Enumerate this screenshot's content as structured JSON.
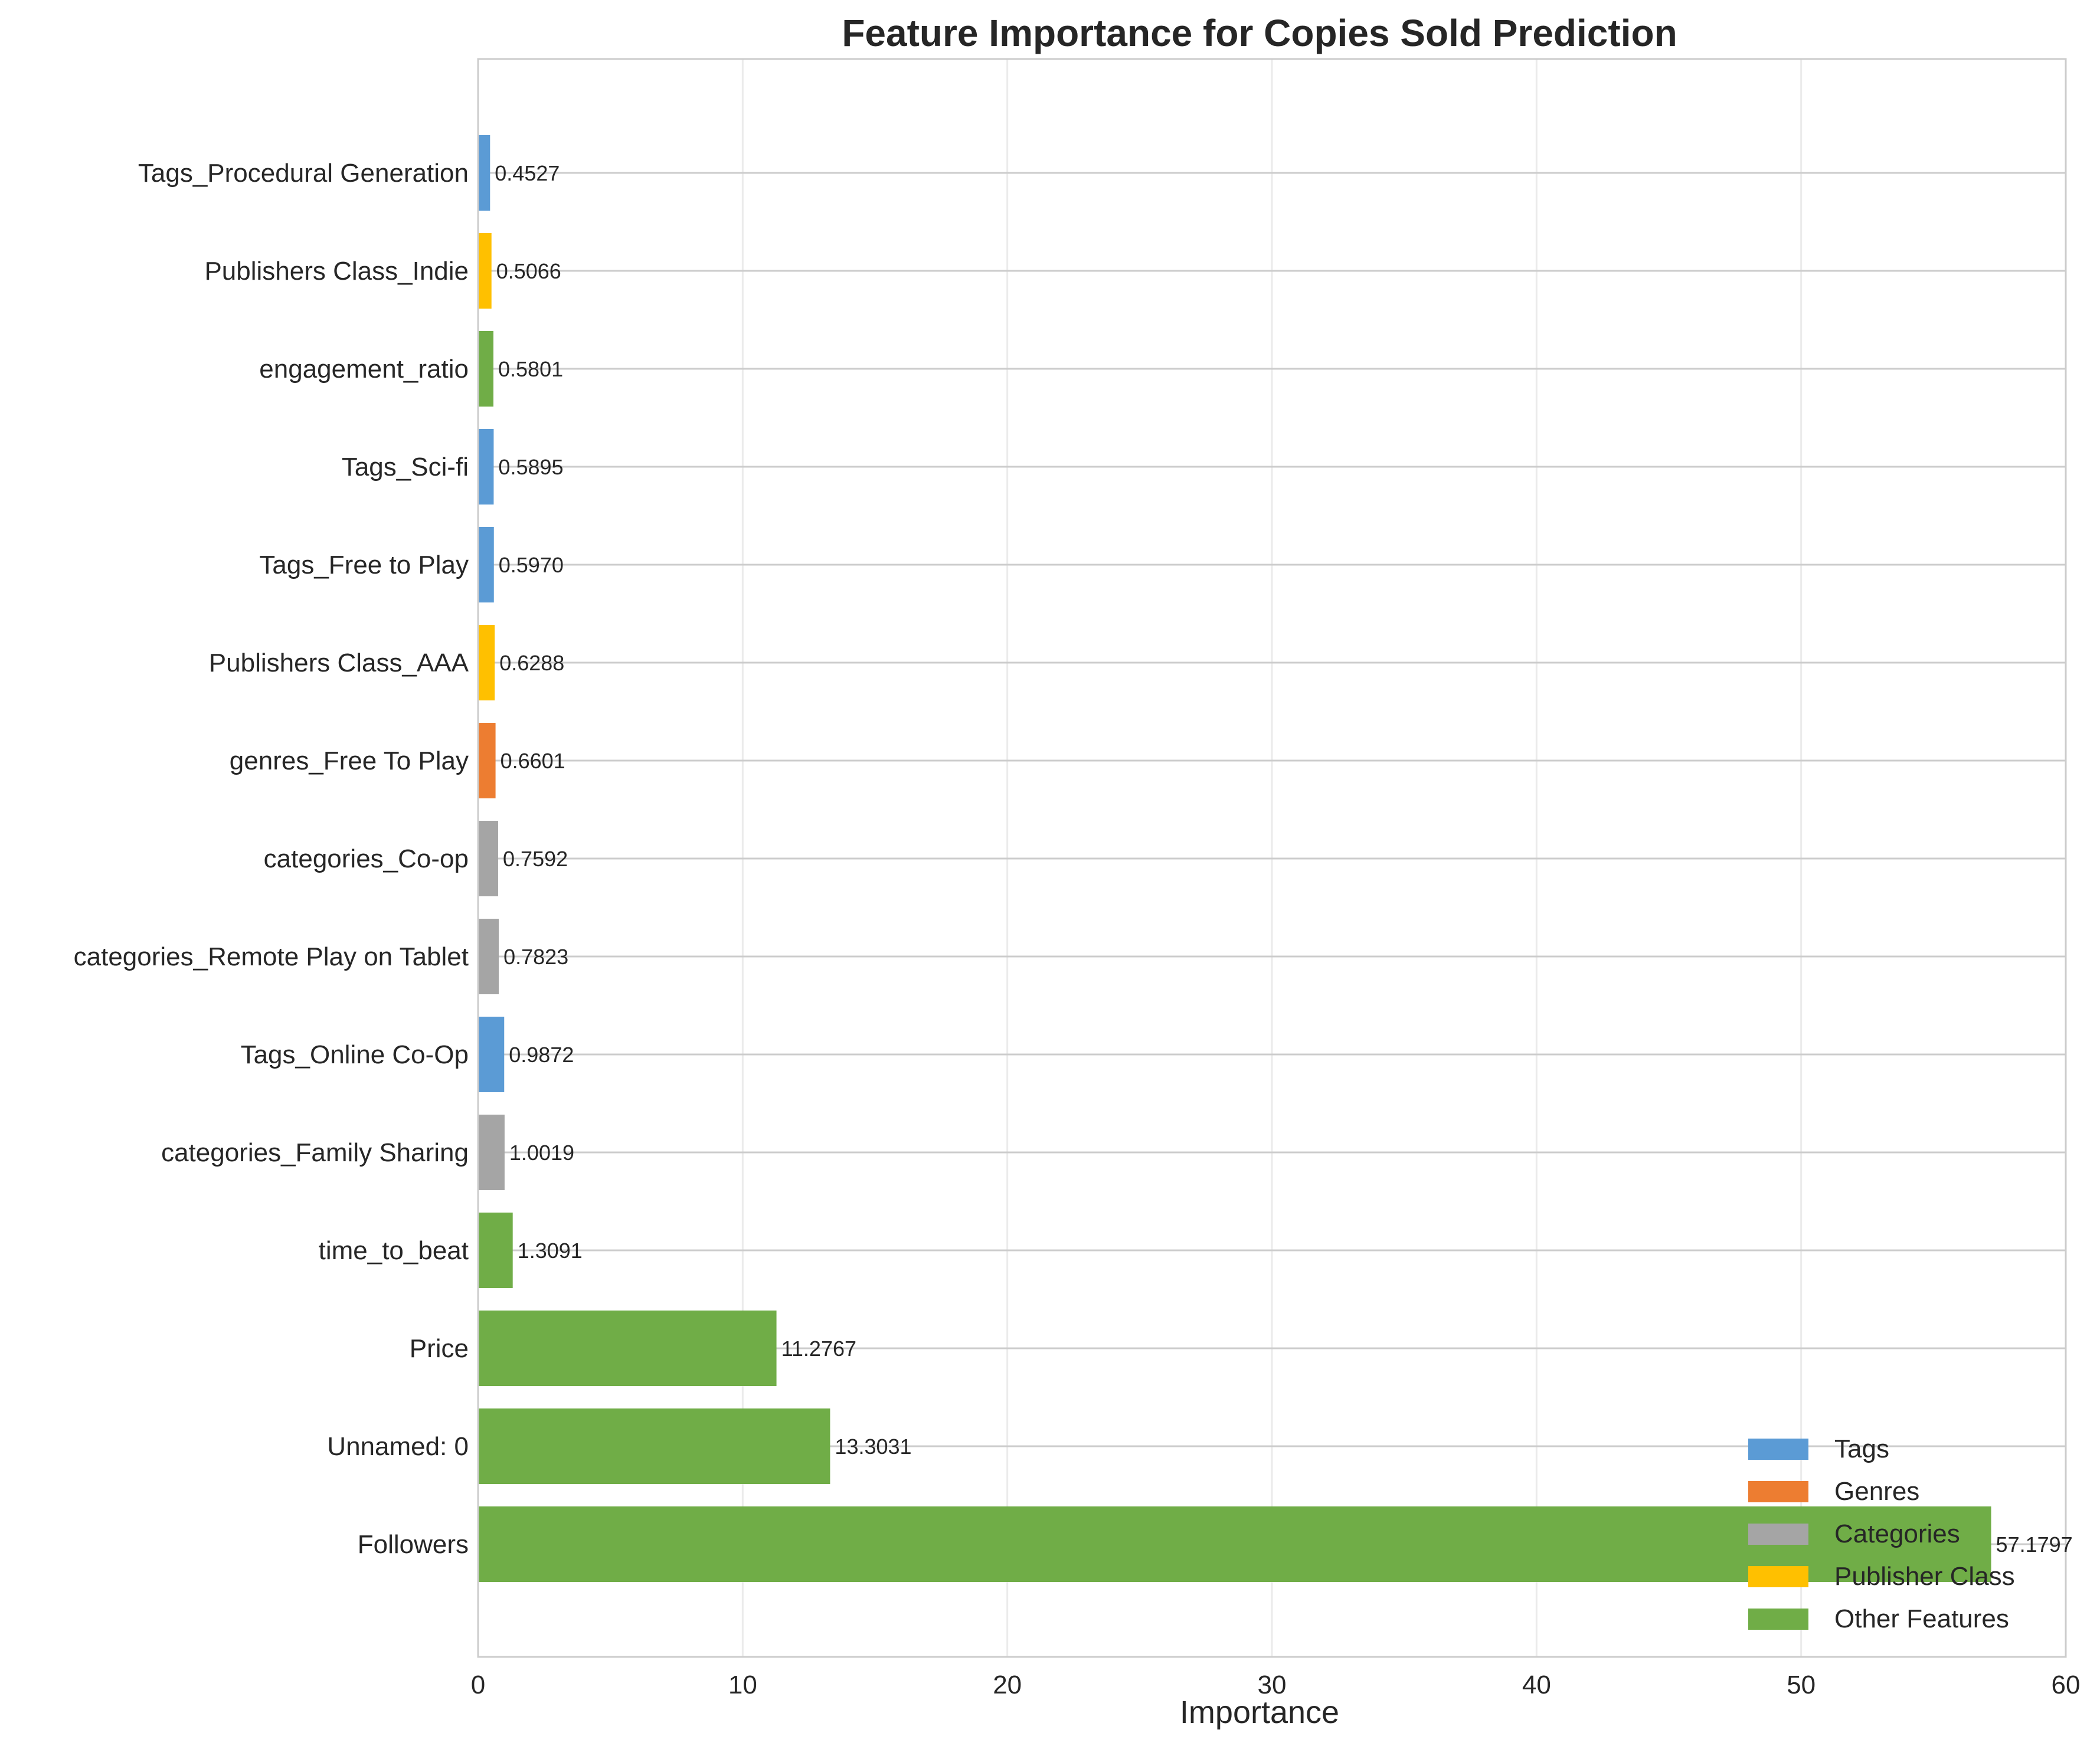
{
  "chart_data": {
    "type": "bar",
    "orientation": "horizontal",
    "title": "Feature Importance for Copies Sold Prediction",
    "xlabel": "Importance",
    "ylabel": "",
    "xlim": [
      0,
      60
    ],
    "xticks": [
      0,
      10,
      20,
      30,
      40,
      50,
      60
    ],
    "grid": true,
    "legend_position": "lower right",
    "groups": [
      {
        "name": "Tags",
        "color": "#5b9bd5"
      },
      {
        "name": "Genres",
        "color": "#ed7d31"
      },
      {
        "name": "Categories",
        "color": "#a5a5a5"
      },
      {
        "name": "Publisher Class",
        "color": "#ffc000"
      },
      {
        "name": "Other Features",
        "color": "#70ad47"
      }
    ],
    "bars": [
      {
        "label": "Tags_Procedural Generation",
        "value": 0.4527,
        "value_label": "0.4527",
        "group": "Tags"
      },
      {
        "label": "Publishers Class_Indie",
        "value": 0.5066,
        "value_label": "0.5066",
        "group": "Publisher Class"
      },
      {
        "label": "engagement_ratio",
        "value": 0.5801,
        "value_label": "0.5801",
        "group": "Other Features"
      },
      {
        "label": "Tags_Sci-fi",
        "value": 0.5895,
        "value_label": "0.5895",
        "group": "Tags"
      },
      {
        "label": "Tags_Free to Play",
        "value": 0.597,
        "value_label": "0.5970",
        "group": "Tags"
      },
      {
        "label": "Publishers Class_AAA",
        "value": 0.6288,
        "value_label": "0.6288",
        "group": "Publisher Class"
      },
      {
        "label": "genres_Free To Play",
        "value": 0.6601,
        "value_label": "0.6601",
        "group": "Genres"
      },
      {
        "label": "categories_Co-op",
        "value": 0.7592,
        "value_label": "0.7592",
        "group": "Categories"
      },
      {
        "label": "categories_Remote Play on Tablet",
        "value": 0.7823,
        "value_label": "0.7823",
        "group": "Categories"
      },
      {
        "label": "Tags_Online Co-Op",
        "value": 0.9872,
        "value_label": "0.9872",
        "group": "Tags"
      },
      {
        "label": "categories_Family Sharing",
        "value": 1.0019,
        "value_label": "1.0019",
        "group": "Categories"
      },
      {
        "label": "time_to_beat",
        "value": 1.3091,
        "value_label": "1.3091",
        "group": "Other Features"
      },
      {
        "label": "Price",
        "value": 11.2767,
        "value_label": "11.2767",
        "group": "Other Features"
      },
      {
        "label": "Unnamed: 0",
        "value": 13.3031,
        "value_label": "13.3031",
        "group": "Other Features"
      },
      {
        "label": "Followers",
        "value": 57.1797,
        "value_label": "57.1797",
        "group": "Other Features"
      }
    ]
  }
}
